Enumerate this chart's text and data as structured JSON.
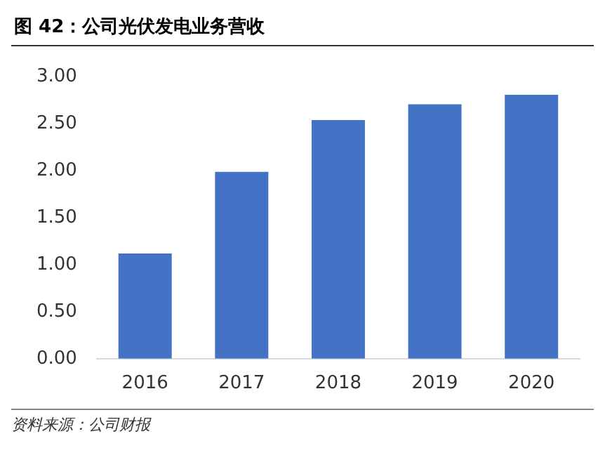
{
  "chart_data": {
    "type": "bar",
    "title": "图 42：公司光伏发电业务营收",
    "categories": [
      "2016",
      "2017",
      "2018",
      "2019",
      "2020"
    ],
    "values": [
      1.12,
      1.99,
      2.54,
      2.71,
      2.81
    ],
    "color": "#4472c4",
    "ylim": [
      0,
      3
    ],
    "yticks": [
      {
        "value": 0,
        "label": "0.00"
      },
      {
        "value": 0.5,
        "label": "0.50"
      },
      {
        "value": 1,
        "label": "1.00"
      },
      {
        "value": 1.5,
        "label": "1.50"
      },
      {
        "value": 2,
        "label": "2.00"
      },
      {
        "value": 2.5,
        "label": "2.50"
      },
      {
        "value": 3,
        "label": "3.00"
      }
    ],
    "grid": false,
    "legend": false,
    "annotations": [
      "资料来源：公司财报"
    ]
  }
}
